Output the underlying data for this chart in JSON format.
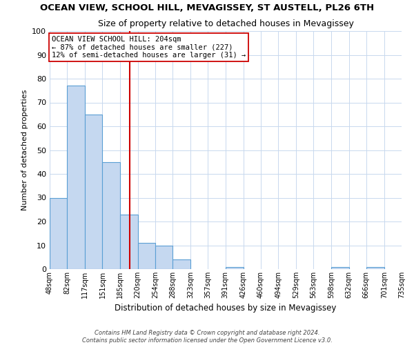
{
  "title": "OCEAN VIEW, SCHOOL HILL, MEVAGISSEY, ST AUSTELL, PL26 6TH",
  "subtitle": "Size of property relative to detached houses in Mevagissey",
  "xlabel": "Distribution of detached houses by size in Mevagissey",
  "ylabel": "Number of detached properties",
  "bar_edges": [
    48,
    82,
    117,
    151,
    185,
    220,
    254,
    288,
    323,
    357,
    391,
    426,
    460,
    494,
    529,
    563,
    598,
    632,
    666,
    701,
    735
  ],
  "bar_heights": [
    30,
    77,
    65,
    45,
    23,
    11,
    10,
    4,
    0,
    0,
    1,
    0,
    0,
    0,
    0,
    0,
    1,
    0,
    1,
    0
  ],
  "bar_color": "#c5d8f0",
  "bar_edge_color": "#5a9fd4",
  "vline_x": 204,
  "vline_color": "#cc0000",
  "ylim": [
    0,
    100
  ],
  "yticks": [
    0,
    10,
    20,
    30,
    40,
    50,
    60,
    70,
    80,
    90,
    100
  ],
  "annotation_title": "OCEAN VIEW SCHOOL HILL: 204sqm",
  "annotation_line1": "← 87% of detached houses are smaller (227)",
  "annotation_line2": "12% of semi-detached houses are larger (31) →",
  "footer_line1": "Contains HM Land Registry data © Crown copyright and database right 2024.",
  "footer_line2": "Contains public sector information licensed under the Open Government Licence v3.0.",
  "tick_labels": [
    "48sqm",
    "82sqm",
    "117sqm",
    "151sqm",
    "185sqm",
    "220sqm",
    "254sqm",
    "288sqm",
    "323sqm",
    "357sqm",
    "391sqm",
    "426sqm",
    "460sqm",
    "494sqm",
    "529sqm",
    "563sqm",
    "598sqm",
    "632sqm",
    "666sqm",
    "701sqm",
    "735sqm"
  ],
  "background_color": "#ffffff",
  "grid_color": "#c8d8ee"
}
